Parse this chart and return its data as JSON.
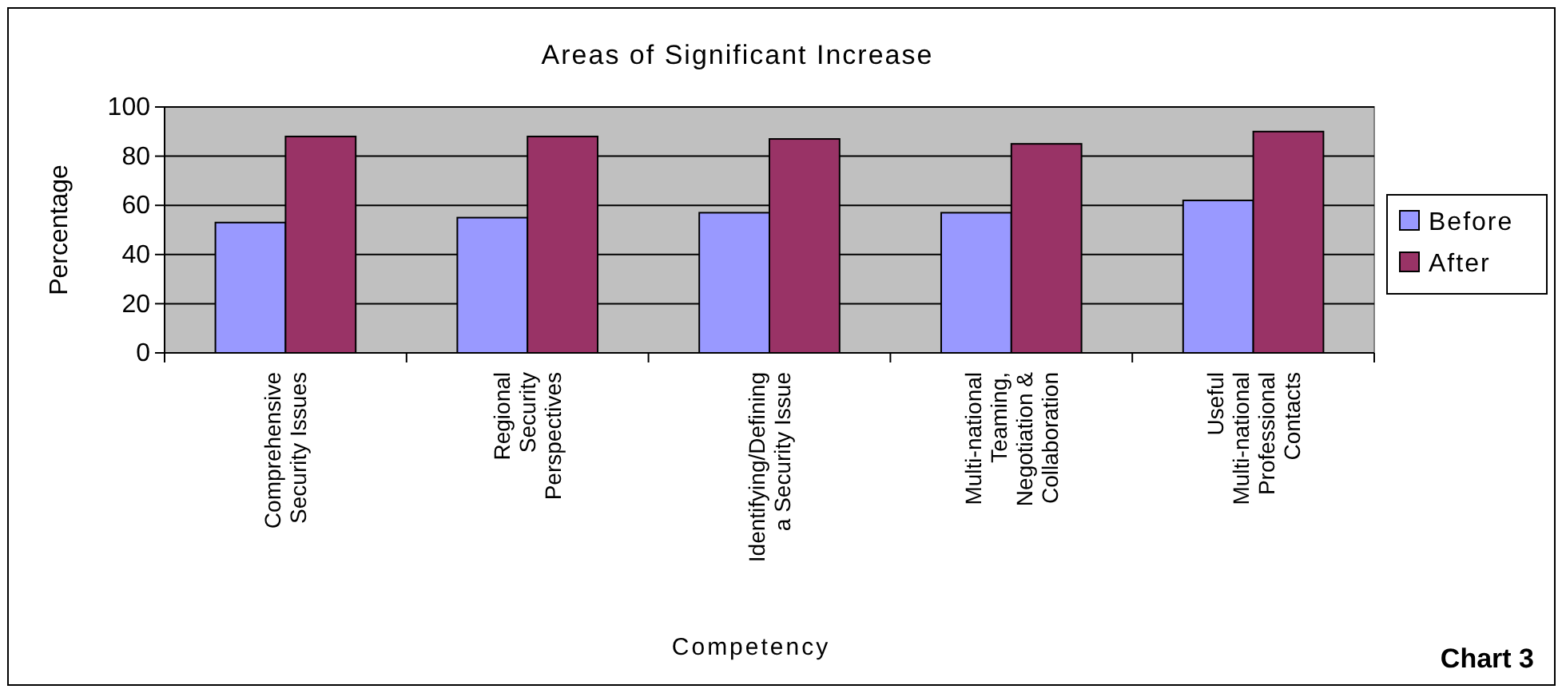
{
  "chart_data": {
    "type": "bar",
    "title": "Areas of Significant Increase",
    "xlabel": "Competency",
    "ylabel": "Percentage",
    "categories": [
      "Comprehensive Security Issues",
      "Regional Security Perspectives",
      "Identifying/Defining a Security Issue",
      "Multi-national Teaming, Negotiation & Collaboration",
      "Useful Multi-national Professional Contacts"
    ],
    "series": [
      {
        "name": "Before",
        "color": "#9999ff",
        "values": [
          53,
          55,
          57,
          57,
          62
        ]
      },
      {
        "name": "After",
        "color": "#993366",
        "values": [
          88,
          88,
          87,
          85,
          90
        ]
      }
    ],
    "ylim": [
      0,
      100
    ],
    "yticks": [
      0,
      20,
      40,
      60,
      80,
      100
    ],
    "grid": "y",
    "legend": "right",
    "annotations": [
      "Chart 3"
    ]
  }
}
